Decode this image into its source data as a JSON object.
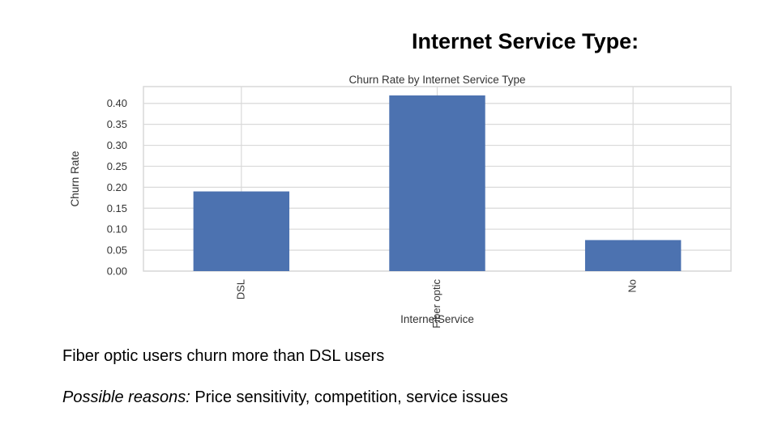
{
  "slide": {
    "title": "Internet Service Type:",
    "bullets": [
      {
        "text": "Fiber optic users churn more than DSL users"
      },
      {
        "prefix": "Possible reasons:",
        "text": " Price sensitivity, competition, service issues"
      }
    ]
  },
  "colors": {
    "bar": "#4c72b0",
    "grid": "#d9d9d9",
    "axis_text": "#333333"
  },
  "chart_data": {
    "type": "bar",
    "title": "Churn Rate by Internet Service Type",
    "xlabel": "InternetService",
    "ylabel": "Churn Rate",
    "categories": [
      "DSL",
      "Fiber optic",
      "No"
    ],
    "values": [
      0.19,
      0.419,
      0.074
    ],
    "yticks": [
      "0.00",
      "0.05",
      "0.10",
      "0.15",
      "0.20",
      "0.25",
      "0.30",
      "0.35",
      "0.40"
    ],
    "ylim": [
      0,
      0.44
    ],
    "grid": true,
    "legend": "none"
  }
}
